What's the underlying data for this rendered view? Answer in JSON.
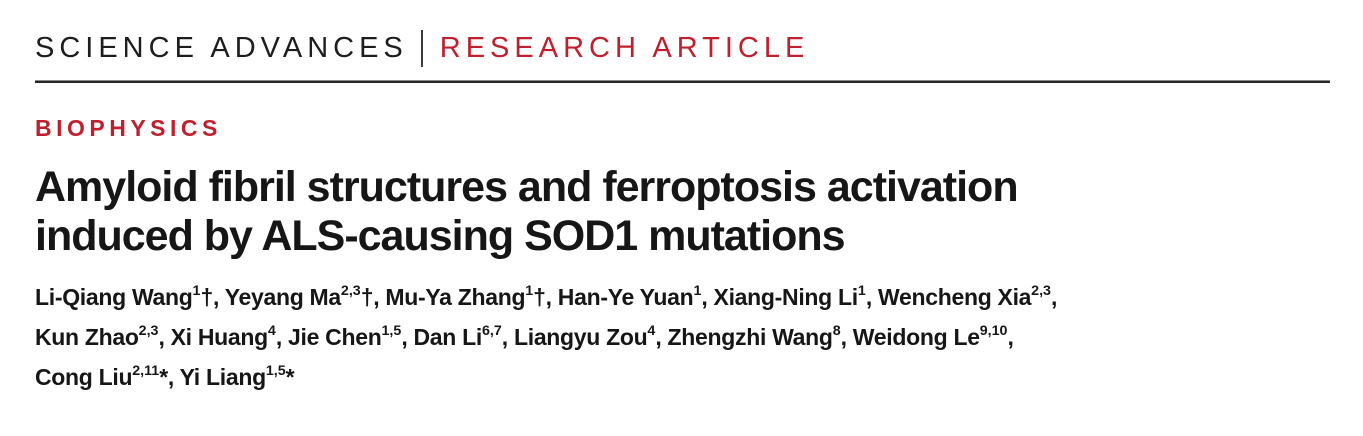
{
  "masthead": {
    "journal": "SCIENCE ADVANCES",
    "article_type": "RESEARCH ARTICLE"
  },
  "section_label": "BIOPHYSICS",
  "title": {
    "lines": [
      "Amyloid fibril structures and ferroptosis activation",
      "induced by ALS-causing SOD1 mutations"
    ]
  },
  "authors": {
    "lines": [
      [
        {
          "text": "Li-Qiang Wang",
          "sup": "1"
        },
        {
          "text": "†, Yeyang Ma",
          "sup": "2,3"
        },
        {
          "text": "†, Mu-Ya Zhang",
          "sup": "1"
        },
        {
          "text": "†, Han-Ye Yuan",
          "sup": "1"
        },
        {
          "text": ", Xiang-Ning Li",
          "sup": "1"
        },
        {
          "text": ", Wencheng Xia",
          "sup": "2,3"
        },
        {
          "text": ","
        }
      ],
      [
        {
          "text": "Kun Zhao",
          "sup": "2,3"
        },
        {
          "text": ", Xi Huang",
          "sup": "4"
        },
        {
          "text": ", Jie Chen",
          "sup": "1,5"
        },
        {
          "text": ", Dan Li",
          "sup": "6,7"
        },
        {
          "text": ", Liangyu Zou",
          "sup": "4"
        },
        {
          "text": ", Zhengzhi Wang",
          "sup": "8"
        },
        {
          "text": ", Weidong Le",
          "sup": "9,10"
        },
        {
          "text": ","
        }
      ],
      [
        {
          "text": "Cong Liu",
          "sup": "2,11"
        },
        {
          "text": "*, Yi Liang",
          "sup": "1,5"
        },
        {
          "text": "*"
        }
      ]
    ]
  },
  "colors": {
    "accent_red": "#c01f2e",
    "text_dark": "#1d1d1b"
  }
}
